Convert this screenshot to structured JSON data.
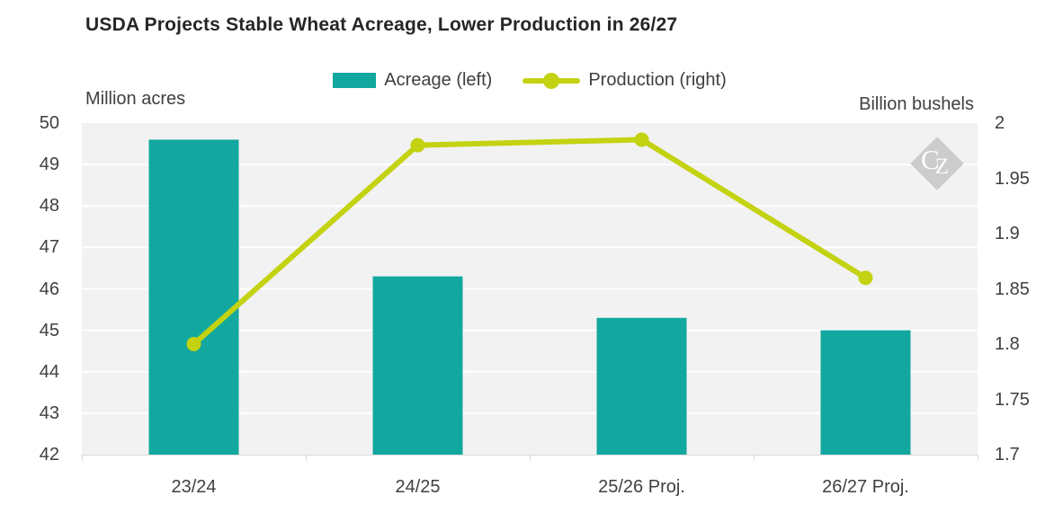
{
  "title": "USDA Projects Stable Wheat Acreage, Lower Production in 26/27",
  "watermark": {
    "text_c": "C",
    "text_z": "Z"
  },
  "colors": {
    "bar": "#12a89f",
    "line": "#c3d211",
    "plot_background": "#f2f2f2",
    "gridline": "#ffffff",
    "axis_line": "#d9d9d9",
    "watermark": "#c9c9c9",
    "title_text": "#262626",
    "body_text": "#404040"
  },
  "chart_data": {
    "type": "combo-bar-line",
    "categories": [
      "23/24",
      "24/25",
      "25/26 Proj.",
      "26/27 Proj."
    ],
    "series": [
      {
        "name": "Acreage (left)",
        "type": "bar",
        "axis": "left",
        "values": [
          49.6,
          46.3,
          45.3,
          45.0
        ]
      },
      {
        "name": "Production (right)",
        "type": "line",
        "axis": "right",
        "values": [
          1.8,
          1.98,
          1.985,
          1.86
        ]
      }
    ],
    "left_axis": {
      "label": "Million acres",
      "min": 42,
      "max": 50,
      "tick_step": 1,
      "ticks": [
        "50",
        "49",
        "48",
        "47",
        "46",
        "45",
        "44",
        "43",
        "42"
      ]
    },
    "right_axis": {
      "label": "Billion bushels",
      "min": 1.7,
      "max": 2,
      "tick_step": 0.05,
      "ticks": [
        "2",
        "1.95",
        "1.9",
        "1.85",
        "1.8",
        "1.75",
        "1.7"
      ]
    },
    "grid": true,
    "legend_position": "top-center",
    "plot_background": "#f2f2f2"
  }
}
